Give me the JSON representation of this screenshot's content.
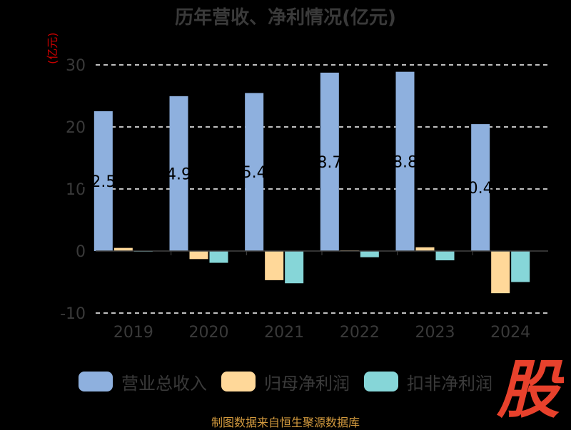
{
  "page": {
    "title": "历年营收、净利情况(亿元)",
    "unit_label": "(亿元)",
    "footer": "制图数据来自恒生聚源数据库",
    "logo_text": "股"
  },
  "colors": {
    "revenue": "#8eb0de",
    "net_profit": "#ffd899",
    "deducted_profit": "#86d6d8",
    "grid": "#ffffff",
    "axis_text": "#3a3a3a",
    "logo": "#e8412c"
  },
  "chart_data": {
    "type": "bar",
    "title": "历年营收、净利情况(亿元)",
    "ylabel": "(亿元)",
    "ylim": [
      -10,
      30
    ],
    "yticks": [
      -10,
      0,
      10,
      20,
      30
    ],
    "grid": true,
    "legend_position": "bottom",
    "categories": [
      "2019",
      "2020",
      "2021",
      "2022",
      "2023",
      "2024"
    ],
    "series": [
      {
        "name": "营业总收入",
        "values": [
          22.53,
          24.96,
          25.47,
          28.75,
          28.89,
          20.45
        ],
        "labels": [
          "22.53",
          "24.96",
          "25.47",
          "28.75",
          "28.89",
          "20.45"
        ]
      },
      {
        "name": "归母净利润",
        "values": [
          0.5,
          -1.3,
          -4.7,
          0.1,
          0.6,
          -6.8
        ]
      },
      {
        "name": "扣非净利润",
        "values": [
          -0.1,
          -1.9,
          -5.2,
          -1.0,
          -1.5,
          -5.0
        ]
      }
    ]
  }
}
